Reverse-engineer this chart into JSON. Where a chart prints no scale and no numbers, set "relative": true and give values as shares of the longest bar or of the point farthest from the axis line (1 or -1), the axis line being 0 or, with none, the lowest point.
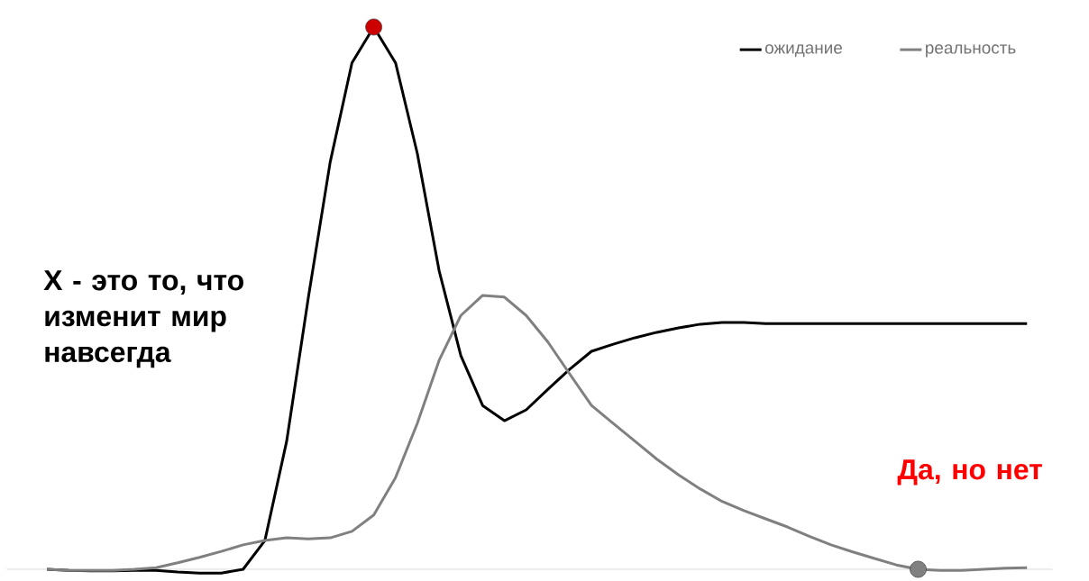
{
  "chart_data": {
    "type": "line",
    "relative": true,
    "legend": "top right",
    "marker": "none",
    "line_style": "solid",
    "categories": [
      null,
      null,
      null,
      null,
      null,
      null,
      null,
      null,
      null,
      null,
      null,
      null,
      null,
      null,
      null,
      null,
      null,
      null,
      null,
      null,
      null,
      null,
      null,
      null,
      null,
      null,
      null,
      null,
      null,
      null,
      null,
      null,
      null,
      null,
      null,
      null,
      null,
      null,
      null,
      null,
      null,
      null,
      null,
      null,
      null,
      null
    ],
    "series": [
      {
        "name": "ожидание",
        "color": "#000000",
        "values": [
          0,
          -0.002,
          -0.003,
          -0.003,
          -0.002,
          -0.002,
          -0.005,
          -0.007,
          -0.007,
          0,
          0.053,
          0.236,
          0.502,
          0.751,
          0.934,
          1,
          0.934,
          0.767,
          0.551,
          0.394,
          0.302,
          0.274,
          0.294,
          0.332,
          0.369,
          0.402,
          0.415,
          0.427,
          0.437,
          0.445,
          0.452,
          0.455,
          0.455,
          0.453,
          0.453,
          0.453,
          0.453,
          0.453,
          0.453,
          0.453,
          0.453,
          0.453,
          0.453,
          0.453,
          0.453,
          0.453
        ]
      },
      {
        "name": "реальность",
        "color": "#808080",
        "values": [
          0,
          -0.002,
          -0.002,
          -0.002,
          0,
          0.003,
          0.012,
          0.022,
          0.033,
          0.045,
          0.053,
          0.058,
          0.056,
          0.058,
          0.07,
          0.1,
          0.169,
          0.269,
          0.385,
          0.468,
          0.505,
          0.502,
          0.468,
          0.419,
          0.36,
          0.302,
          0.269,
          0.236,
          0.203,
          0.174,
          0.148,
          0.125,
          0.108,
          0.093,
          0.078,
          0.061,
          0.045,
          0.032,
          0.02,
          0.008,
          0,
          -0.002,
          -0.002,
          0,
          0.002,
          0.003
        ]
      }
    ],
    "annotations": [
      "X - это то, что изменит мир навсегда",
      "Да, но нет"
    ]
  }
}
